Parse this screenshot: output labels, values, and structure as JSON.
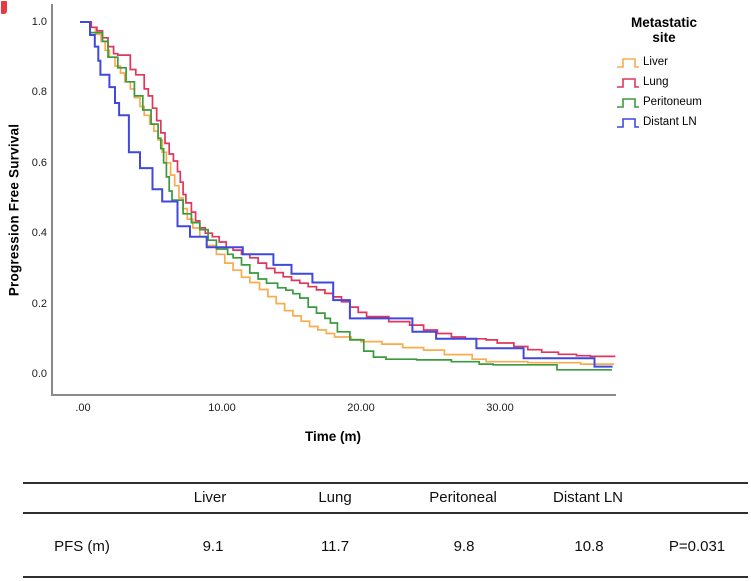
{
  "legend": {
    "title_lines": [
      "Metastatic",
      "site"
    ],
    "items": [
      {
        "label": "Liver",
        "color": "#F9AC4F"
      },
      {
        "label": "Lung",
        "color": "#E1355C"
      },
      {
        "label": "Peritoneum",
        "color": "#3A9A3E"
      },
      {
        "label": "Distant LN",
        "color": "#3F49DF"
      }
    ]
  },
  "chart_data": {
    "type": "line",
    "subtype": "kaplan_meier_step",
    "title": "",
    "xlabel": "Time (m)",
    "ylabel": "Progression Free Survival",
    "xlim": [
      0,
      38.5
    ],
    "ylim": [
      0.0,
      1.0
    ],
    "grid": false,
    "legend_position": "top-right",
    "x_ticks": [
      {
        "value": 0,
        "label": ".00"
      },
      {
        "value": 10,
        "label": "10.00"
      },
      {
        "value": 20,
        "label": "20.00"
      },
      {
        "value": 30,
        "label": "30.00"
      }
    ],
    "y_ticks": [
      {
        "value": 1.0,
        "label": "1.0"
      },
      {
        "value": 0.8,
        "label": "0.8"
      },
      {
        "value": 0.6,
        "label": "0.6"
      },
      {
        "value": 0.4,
        "label": "0.4"
      },
      {
        "value": 0.2,
        "label": "0.2"
      },
      {
        "value": 0.0,
        "label": "0.0"
      }
    ],
    "series": [
      {
        "name": "Liver",
        "color": "#F9AC4F",
        "points": [
          [
            0,
            1.0
          ],
          [
            0.5,
            0.985
          ],
          [
            0.9,
            0.965
          ],
          [
            1.3,
            0.945
          ],
          [
            1.6,
            0.92
          ],
          [
            1.9,
            0.9
          ],
          [
            2.3,
            0.875
          ],
          [
            2.7,
            0.855
          ],
          [
            3.0,
            0.83
          ],
          [
            3.4,
            0.81
          ],
          [
            3.7,
            0.785
          ],
          [
            4.1,
            0.76
          ],
          [
            4.4,
            0.735
          ],
          [
            4.8,
            0.71
          ],
          [
            5.1,
            0.69
          ],
          [
            5.4,
            0.665
          ],
          [
            5.7,
            0.63
          ],
          [
            6.0,
            0.6
          ],
          [
            6.3,
            0.565
          ],
          [
            6.6,
            0.535
          ],
          [
            6.9,
            0.5
          ],
          [
            7.2,
            0.47
          ],
          [
            7.5,
            0.44
          ],
          [
            7.9,
            0.415
          ],
          [
            8.4,
            0.39
          ],
          [
            8.9,
            0.365
          ],
          [
            9.6,
            0.34
          ],
          [
            10.2,
            0.315
          ],
          [
            10.8,
            0.295
          ],
          [
            11.4,
            0.275
          ],
          [
            12.0,
            0.26
          ],
          [
            12.7,
            0.24
          ],
          [
            13.3,
            0.22
          ],
          [
            13.9,
            0.2
          ],
          [
            14.5,
            0.18
          ],
          [
            15.1,
            0.165
          ],
          [
            15.7,
            0.15
          ],
          [
            16.3,
            0.135
          ],
          [
            16.9,
            0.125
          ],
          [
            17.5,
            0.115
          ],
          [
            18.1,
            0.105
          ],
          [
            19.3,
            0.098
          ],
          [
            20.0,
            0.092
          ],
          [
            21.5,
            0.085
          ],
          [
            23.0,
            0.075
          ],
          [
            24.5,
            0.068
          ],
          [
            26.0,
            0.055
          ],
          [
            28.0,
            0.042
          ],
          [
            29.0,
            0.035
          ],
          [
            32.0,
            0.032
          ],
          [
            35.8,
            0.028
          ],
          [
            38.2,
            0.028
          ]
        ]
      },
      {
        "name": "Lung",
        "color": "#E1355C",
        "points": [
          [
            0,
            1.0
          ],
          [
            0.6,
            0.985
          ],
          [
            1.0,
            0.975
          ],
          [
            1.4,
            0.955
          ],
          [
            1.8,
            0.93
          ],
          [
            2.2,
            0.91
          ],
          [
            2.5,
            0.906
          ],
          [
            3.4,
            0.865
          ],
          [
            3.8,
            0.85
          ],
          [
            4.4,
            0.81
          ],
          [
            4.7,
            0.79
          ],
          [
            5.0,
            0.755
          ],
          [
            5.3,
            0.72
          ],
          [
            5.6,
            0.685
          ],
          [
            5.9,
            0.655
          ],
          [
            6.2,
            0.625
          ],
          [
            6.5,
            0.605
          ],
          [
            6.8,
            0.575
          ],
          [
            7.0,
            0.545
          ],
          [
            7.2,
            0.51
          ],
          [
            7.4,
            0.486
          ],
          [
            7.8,
            0.46
          ],
          [
            8.1,
            0.435
          ],
          [
            8.4,
            0.415
          ],
          [
            8.8,
            0.4
          ],
          [
            9.3,
            0.39
          ],
          [
            9.8,
            0.375
          ],
          [
            10.3,
            0.36
          ],
          [
            10.8,
            0.352
          ],
          [
            11.4,
            0.34
          ],
          [
            12.0,
            0.33
          ],
          [
            12.6,
            0.315
          ],
          [
            13.2,
            0.3
          ],
          [
            13.8,
            0.288
          ],
          [
            14.4,
            0.276
          ],
          [
            15.0,
            0.266
          ],
          [
            15.6,
            0.258
          ],
          [
            16.2,
            0.248
          ],
          [
            16.8,
            0.239
          ],
          [
            17.4,
            0.229
          ],
          [
            18.0,
            0.219
          ],
          [
            18.6,
            0.205
          ],
          [
            19.2,
            0.19
          ],
          [
            19.8,
            0.175
          ],
          [
            20.4,
            0.163
          ],
          [
            22.0,
            0.149
          ],
          [
            23.5,
            0.139
          ],
          [
            24.5,
            0.125
          ],
          [
            25.5,
            0.115
          ],
          [
            26.5,
            0.105
          ],
          [
            27.5,
            0.1
          ],
          [
            29.0,
            0.097
          ],
          [
            29.8,
            0.088
          ],
          [
            31.0,
            0.078
          ],
          [
            32.0,
            0.069
          ],
          [
            33.0,
            0.062
          ],
          [
            34.2,
            0.056
          ],
          [
            35.5,
            0.052
          ],
          [
            36.5,
            0.05
          ],
          [
            38.3,
            0.05
          ]
        ]
      },
      {
        "name": "Peritoneum",
        "color": "#3A9A3E",
        "points": [
          [
            0,
            1.0
          ],
          [
            0.5,
            0.97
          ],
          [
            1.4,
            0.945
          ],
          [
            1.8,
            0.9
          ],
          [
            2.5,
            0.87
          ],
          [
            3.1,
            0.83
          ],
          [
            3.7,
            0.79
          ],
          [
            4.3,
            0.75
          ],
          [
            4.9,
            0.71
          ],
          [
            5.4,
            0.67
          ],
          [
            5.6,
            0.64
          ],
          [
            5.8,
            0.6
          ],
          [
            6.0,
            0.56
          ],
          [
            6.2,
            0.52
          ],
          [
            6.4,
            0.494
          ],
          [
            7.2,
            0.455
          ],
          [
            7.8,
            0.43
          ],
          [
            8.4,
            0.41
          ],
          [
            9.0,
            0.38
          ],
          [
            9.6,
            0.355
          ],
          [
            10.4,
            0.34
          ],
          [
            10.8,
            0.33
          ],
          [
            11.4,
            0.31
          ],
          [
            12.0,
            0.287
          ],
          [
            12.6,
            0.27
          ],
          [
            13.2,
            0.258
          ],
          [
            14.0,
            0.245
          ],
          [
            14.6,
            0.238
          ],
          [
            15.1,
            0.228
          ],
          [
            15.6,
            0.216
          ],
          [
            16.2,
            0.19
          ],
          [
            16.8,
            0.173
          ],
          [
            17.4,
            0.158
          ],
          [
            17.8,
            0.145
          ],
          [
            18.3,
            0.12
          ],
          [
            19.2,
            0.097
          ],
          [
            20.2,
            0.065
          ],
          [
            20.9,
            0.048
          ],
          [
            21.8,
            0.042
          ],
          [
            24.0,
            0.04
          ],
          [
            26.5,
            0.035
          ],
          [
            28.5,
            0.028
          ],
          [
            29.5,
            0.026
          ],
          [
            34.1,
            0.012
          ],
          [
            38.0,
            0.01
          ]
        ]
      },
      {
        "name": "Distant LN",
        "color": "#3F49DF",
        "points": [
          [
            0,
            1.0
          ],
          [
            0.5,
            0.963
          ],
          [
            0.85,
            0.93
          ],
          [
            1.1,
            0.89
          ],
          [
            1.25,
            0.85
          ],
          [
            1.9,
            0.815
          ],
          [
            2.3,
            0.77
          ],
          [
            2.6,
            0.735
          ],
          [
            3.3,
            0.63
          ],
          [
            4.1,
            0.585
          ],
          [
            5.0,
            0.525
          ],
          [
            5.7,
            0.49
          ],
          [
            6.8,
            0.42
          ],
          [
            7.7,
            0.39
          ],
          [
            8.9,
            0.36
          ],
          [
            11.5,
            0.34
          ],
          [
            13.7,
            0.31
          ],
          [
            15.0,
            0.285
          ],
          [
            16.5,
            0.26
          ],
          [
            18.0,
            0.21
          ],
          [
            19.2,
            0.158
          ],
          [
            23.7,
            0.12
          ],
          [
            25.4,
            0.1
          ],
          [
            28.3,
            0.073
          ],
          [
            31.7,
            0.045
          ],
          [
            36.8,
            0.021
          ],
          [
            38.1,
            0.021
          ]
        ]
      }
    ]
  },
  "table": {
    "columns": [
      "Liver",
      "Lung",
      "Peritoneal",
      "Distant LN"
    ],
    "row_label": "PFS (m)",
    "values": [
      "9.1",
      "11.7",
      "9.8",
      "10.8"
    ],
    "p_value": "P=0.031"
  }
}
